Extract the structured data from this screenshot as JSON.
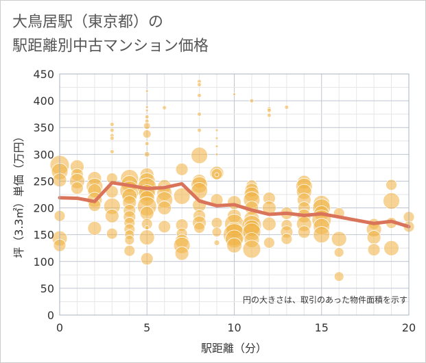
{
  "title_line1": "大鳥居駅（東京都）の",
  "title_line2": "駅距離別中古マンション価格",
  "colors": {
    "bubble": "#f1b13f",
    "line": "#d9735a",
    "grid_minor": "#e6e6e6",
    "grid_major": "#bfc4d0",
    "plot_border": "#aab0bf"
  },
  "chart_data": {
    "type": "scatter",
    "xlabel": "駅距離（分）",
    "ylabel": "坪（3.3㎡）単価（万円）",
    "xlim": [
      0,
      20
    ],
    "ylim": [
      0,
      450
    ],
    "xticks": [
      0,
      5,
      10,
      15,
      20
    ],
    "yticks": [
      0,
      50,
      100,
      150,
      200,
      250,
      300,
      350,
      400,
      450
    ],
    "grid": true,
    "annotation": "円の大きさは、取引のあった物件面積を示す",
    "series": [
      {
        "kind": "bubble",
        "points": [
          {
            "x": 0,
            "y": 280,
            "s": 14
          },
          {
            "x": 0,
            "y": 268,
            "s": 12
          },
          {
            "x": 0,
            "y": 252,
            "s": 10
          },
          {
            "x": 0,
            "y": 185,
            "s": 8
          },
          {
            "x": 0,
            "y": 143,
            "s": 11
          },
          {
            "x": 0,
            "y": 130,
            "s": 9
          },
          {
            "x": 1,
            "y": 277,
            "s": 10
          },
          {
            "x": 1,
            "y": 262,
            "s": 9
          },
          {
            "x": 1,
            "y": 250,
            "s": 11
          },
          {
            "x": 1,
            "y": 237,
            "s": 9
          },
          {
            "x": 2,
            "y": 255,
            "s": 10
          },
          {
            "x": 2,
            "y": 240,
            "s": 12
          },
          {
            "x": 2,
            "y": 232,
            "s": 10
          },
          {
            "x": 2,
            "y": 215,
            "s": 11
          },
          {
            "x": 2,
            "y": 205,
            "s": 9
          },
          {
            "x": 2,
            "y": 162,
            "s": 10
          },
          {
            "x": 3,
            "y": 356,
            "s": 3
          },
          {
            "x": 3,
            "y": 345,
            "s": 3
          },
          {
            "x": 3,
            "y": 335,
            "s": 3
          },
          {
            "x": 3,
            "y": 330,
            "s": 3
          },
          {
            "x": 3,
            "y": 305,
            "s": 3
          },
          {
            "x": 3,
            "y": 255,
            "s": 8
          },
          {
            "x": 3,
            "y": 230,
            "s": 9
          },
          {
            "x": 3,
            "y": 203,
            "s": 12
          },
          {
            "x": 3,
            "y": 185,
            "s": 10
          },
          {
            "x": 3,
            "y": 152,
            "s": 8
          },
          {
            "x": 4,
            "y": 255,
            "s": 13
          },
          {
            "x": 4,
            "y": 245,
            "s": 12
          },
          {
            "x": 4,
            "y": 232,
            "s": 14
          },
          {
            "x": 4,
            "y": 222,
            "s": 11
          },
          {
            "x": 4,
            "y": 210,
            "s": 10
          },
          {
            "x": 4,
            "y": 195,
            "s": 9
          },
          {
            "x": 4,
            "y": 183,
            "s": 9
          },
          {
            "x": 4,
            "y": 172,
            "s": 8
          },
          {
            "x": 4,
            "y": 160,
            "s": 8
          },
          {
            "x": 4,
            "y": 150,
            "s": 7
          },
          {
            "x": 4,
            "y": 140,
            "s": 7
          },
          {
            "x": 4,
            "y": 120,
            "s": 8
          },
          {
            "x": 5,
            "y": 418,
            "s": 2
          },
          {
            "x": 5,
            "y": 388,
            "s": 2
          },
          {
            "x": 5,
            "y": 382,
            "s": 2
          },
          {
            "x": 5,
            "y": 370,
            "s": 3
          },
          {
            "x": 5,
            "y": 362,
            "s": 3
          },
          {
            "x": 5,
            "y": 353,
            "s": 5
          },
          {
            "x": 5,
            "y": 338,
            "s": 6
          },
          {
            "x": 5,
            "y": 320,
            "s": 3
          },
          {
            "x": 5,
            "y": 300,
            "s": 4
          },
          {
            "x": 5,
            "y": 262,
            "s": 10
          },
          {
            "x": 5,
            "y": 250,
            "s": 12
          },
          {
            "x": 5,
            "y": 238,
            "s": 14
          },
          {
            "x": 5,
            "y": 228,
            "s": 12
          },
          {
            "x": 5,
            "y": 218,
            "s": 11
          },
          {
            "x": 5,
            "y": 203,
            "s": 14
          },
          {
            "x": 5,
            "y": 190,
            "s": 10
          },
          {
            "x": 5,
            "y": 170,
            "s": 8
          },
          {
            "x": 5,
            "y": 163,
            "s": 3
          },
          {
            "x": 5,
            "y": 145,
            "s": 11
          },
          {
            "x": 5,
            "y": 105,
            "s": 9
          },
          {
            "x": 6,
            "y": 387,
            "s": 3
          },
          {
            "x": 6,
            "y": 240,
            "s": 10
          },
          {
            "x": 6,
            "y": 228,
            "s": 11
          },
          {
            "x": 6,
            "y": 215,
            "s": 12
          },
          {
            "x": 6,
            "y": 200,
            "s": 10
          },
          {
            "x": 6,
            "y": 165,
            "s": 9
          },
          {
            "x": 7,
            "y": 272,
            "s": 9
          },
          {
            "x": 7,
            "y": 222,
            "s": 12
          },
          {
            "x": 7,
            "y": 168,
            "s": 9
          },
          {
            "x": 7,
            "y": 152,
            "s": 8
          },
          {
            "x": 7,
            "y": 138,
            "s": 10
          },
          {
            "x": 7,
            "y": 130,
            "s": 12
          },
          {
            "x": 7,
            "y": 115,
            "s": 10
          },
          {
            "x": 8,
            "y": 436,
            "s": 3
          },
          {
            "x": 8,
            "y": 430,
            "s": 3
          },
          {
            "x": 8,
            "y": 410,
            "s": 3
          },
          {
            "x": 8,
            "y": 375,
            "s": 3
          },
          {
            "x": 8,
            "y": 345,
            "s": 3
          },
          {
            "x": 8,
            "y": 298,
            "s": 12
          },
          {
            "x": 8,
            "y": 250,
            "s": 10
          },
          {
            "x": 8,
            "y": 243,
            "s": 12
          },
          {
            "x": 8,
            "y": 232,
            "s": 12
          },
          {
            "x": 8,
            "y": 205,
            "s": 10
          },
          {
            "x": 8,
            "y": 185,
            "s": 9
          },
          {
            "x": 8,
            "y": 172,
            "s": 10
          },
          {
            "x": 8,
            "y": 163,
            "s": 8
          },
          {
            "x": 9,
            "y": 345,
            "s": 2
          },
          {
            "x": 9,
            "y": 330,
            "s": 2
          },
          {
            "x": 9,
            "y": 315,
            "s": 2
          },
          {
            "x": 9,
            "y": 300,
            "s": 2
          },
          {
            "x": 9,
            "y": 265,
            "s": 10
          },
          {
            "x": 9,
            "y": 263,
            "s": 8
          },
          {
            "x": 9,
            "y": 262,
            "s": 3
          },
          {
            "x": 9,
            "y": 215,
            "s": 9
          },
          {
            "x": 9,
            "y": 172,
            "s": 8
          },
          {
            "x": 9,
            "y": 155,
            "s": 7
          },
          {
            "x": 9,
            "y": 135,
            "s": 4
          },
          {
            "x": 10,
            "y": 412,
            "s": 2
          },
          {
            "x": 10,
            "y": 210,
            "s": 10
          },
          {
            "x": 10,
            "y": 185,
            "s": 10
          },
          {
            "x": 10,
            "y": 170,
            "s": 14
          },
          {
            "x": 10,
            "y": 158,
            "s": 12
          },
          {
            "x": 10,
            "y": 150,
            "s": 16
          },
          {
            "x": 10,
            "y": 142,
            "s": 13
          },
          {
            "x": 10,
            "y": 130,
            "s": 11
          },
          {
            "x": 11,
            "y": 400,
            "s": 3
          },
          {
            "x": 11,
            "y": 242,
            "s": 8
          },
          {
            "x": 11,
            "y": 233,
            "s": 10
          },
          {
            "x": 11,
            "y": 225,
            "s": 11
          },
          {
            "x": 11,
            "y": 215,
            "s": 12
          },
          {
            "x": 11,
            "y": 200,
            "s": 10
          },
          {
            "x": 11,
            "y": 180,
            "s": 11
          },
          {
            "x": 11,
            "y": 168,
            "s": 14
          },
          {
            "x": 11,
            "y": 162,
            "s": 12
          },
          {
            "x": 11,
            "y": 155,
            "s": 13
          },
          {
            "x": 11,
            "y": 140,
            "s": 11
          },
          {
            "x": 11,
            "y": 123,
            "s": 13
          },
          {
            "x": 12,
            "y": 385,
            "s": 3
          },
          {
            "x": 12,
            "y": 382,
            "s": 3
          },
          {
            "x": 12,
            "y": 373,
            "s": 3
          },
          {
            "x": 12,
            "y": 218,
            "s": 9
          },
          {
            "x": 12,
            "y": 200,
            "s": 10
          },
          {
            "x": 12,
            "y": 170,
            "s": 10
          },
          {
            "x": 12,
            "y": 135,
            "s": 8
          },
          {
            "x": 13,
            "y": 388,
            "s": 3
          },
          {
            "x": 13,
            "y": 190,
            "s": 9
          },
          {
            "x": 13,
            "y": 168,
            "s": 8
          },
          {
            "x": 13,
            "y": 155,
            "s": 9
          },
          {
            "x": 13,
            "y": 142,
            "s": 8
          },
          {
            "x": 14,
            "y": 248,
            "s": 10
          },
          {
            "x": 14,
            "y": 240,
            "s": 12
          },
          {
            "x": 14,
            "y": 230,
            "s": 11
          },
          {
            "x": 14,
            "y": 215,
            "s": 10
          },
          {
            "x": 14,
            "y": 200,
            "s": 9
          },
          {
            "x": 14,
            "y": 185,
            "s": 10
          },
          {
            "x": 14,
            "y": 170,
            "s": 11
          },
          {
            "x": 14,
            "y": 155,
            "s": 9
          },
          {
            "x": 15,
            "y": 208,
            "s": 12
          },
          {
            "x": 15,
            "y": 200,
            "s": 13
          },
          {
            "x": 15,
            "y": 190,
            "s": 11
          },
          {
            "x": 15,
            "y": 178,
            "s": 14
          },
          {
            "x": 15,
            "y": 165,
            "s": 12
          },
          {
            "x": 15,
            "y": 150,
            "s": 12
          },
          {
            "x": 16,
            "y": 190,
            "s": 8
          },
          {
            "x": 16,
            "y": 142,
            "s": 11
          },
          {
            "x": 16,
            "y": 117,
            "s": 7
          },
          {
            "x": 16,
            "y": 72,
            "s": 7
          },
          {
            "x": 18,
            "y": 170,
            "s": 8
          },
          {
            "x": 18,
            "y": 160,
            "s": 11
          },
          {
            "x": 18,
            "y": 145,
            "s": 10
          },
          {
            "x": 18,
            "y": 122,
            "s": 9
          },
          {
            "x": 19,
            "y": 243,
            "s": 8
          },
          {
            "x": 19,
            "y": 213,
            "s": 12
          },
          {
            "x": 19,
            "y": 172,
            "s": 8
          },
          {
            "x": 19,
            "y": 125,
            "s": 11
          },
          {
            "x": 20,
            "y": 183,
            "s": 8
          },
          {
            "x": 20,
            "y": 165,
            "s": 8
          }
        ]
      },
      {
        "kind": "line",
        "x": [
          0,
          1,
          2,
          3,
          4,
          5,
          6,
          7,
          8,
          9,
          10,
          11,
          12,
          13,
          14,
          15,
          16,
          17,
          18,
          19,
          20
        ],
        "y": [
          219,
          218,
          212,
          247,
          242,
          236,
          238,
          245,
          213,
          204,
          206,
          196,
          188,
          190,
          186,
          189,
          183,
          177,
          171,
          175,
          165
        ]
      }
    ]
  }
}
